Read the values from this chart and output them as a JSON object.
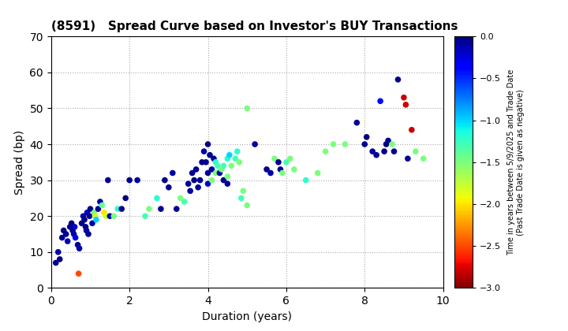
{
  "title": "(8591)   Spread Curve based on Investor's BUY Transactions",
  "xlabel": "Duration (years)",
  "ylabel": "Spread (bp)",
  "colorbar_label": "Time in years between 5/9/2025 and Trade Date\n(Past Trade Date is given as negative)",
  "xlim": [
    0,
    10
  ],
  "ylim": [
    0,
    70
  ],
  "xticks": [
    0,
    2,
    4,
    6,
    8,
    10
  ],
  "yticks": [
    0,
    10,
    20,
    30,
    40,
    50,
    60,
    70
  ],
  "clim": [
    -3.0,
    0.0
  ],
  "cticks": [
    0.0,
    -0.5,
    -1.0,
    -1.5,
    -2.0,
    -2.5,
    -3.0
  ],
  "points": [
    [
      0.12,
      7,
      -0.05
    ],
    [
      0.18,
      10,
      -0.1
    ],
    [
      0.22,
      8,
      0.0
    ],
    [
      0.28,
      14,
      -0.05
    ],
    [
      0.32,
      16,
      -0.02
    ],
    [
      0.38,
      15,
      -0.05
    ],
    [
      0.42,
      13,
      -0.15
    ],
    [
      0.48,
      17,
      -0.05
    ],
    [
      0.52,
      18,
      -0.0
    ],
    [
      0.55,
      16,
      -0.02
    ],
    [
      0.58,
      15,
      -0.1
    ],
    [
      0.6,
      17,
      -0.2
    ],
    [
      0.62,
      14,
      -0.3
    ],
    [
      0.68,
      12,
      -0.05
    ],
    [
      0.7,
      4,
      -2.5
    ],
    [
      0.72,
      11,
      -0.1
    ],
    [
      0.78,
      18,
      -0.05
    ],
    [
      0.82,
      20,
      -0.1
    ],
    [
      0.85,
      19,
      -0.0
    ],
    [
      0.88,
      17,
      -0.02
    ],
    [
      0.9,
      16,
      -0.1
    ],
    [
      0.92,
      21,
      -0.15
    ],
    [
      0.95,
      15,
      -0.05
    ],
    [
      0.98,
      20,
      -0.08
    ],
    [
      1.0,
      22,
      -0.05
    ],
    [
      1.05,
      18,
      -0.15
    ],
    [
      1.1,
      21,
      -1.5
    ],
    [
      1.12,
      20,
      -1.8
    ],
    [
      1.15,
      19,
      -1.0
    ],
    [
      1.2,
      22,
      -0.05
    ],
    [
      1.25,
      24,
      -0.1
    ],
    [
      1.3,
      23,
      -1.4
    ],
    [
      1.35,
      21,
      -2.0
    ],
    [
      1.4,
      20,
      -1.8
    ],
    [
      1.45,
      30,
      -0.05
    ],
    [
      1.5,
      20,
      -0.1
    ],
    [
      1.6,
      20,
      -1.5
    ],
    [
      1.7,
      22,
      -1.2
    ],
    [
      1.8,
      22,
      -0.05
    ],
    [
      1.9,
      25,
      -0.0
    ],
    [
      2.0,
      30,
      -0.05
    ],
    [
      2.2,
      30,
      -0.1
    ],
    [
      2.4,
      20,
      -1.3
    ],
    [
      2.5,
      22,
      -1.5
    ],
    [
      2.7,
      25,
      -1.2
    ],
    [
      2.8,
      22,
      -0.05
    ],
    [
      2.9,
      30,
      -0.0
    ],
    [
      3.0,
      28,
      -0.05
    ],
    [
      3.1,
      32,
      -0.1
    ],
    [
      3.2,
      22,
      -0.05
    ],
    [
      3.3,
      25,
      -1.5
    ],
    [
      3.4,
      24,
      -1.3
    ],
    [
      3.5,
      29,
      -0.05
    ],
    [
      3.55,
      27,
      -0.1
    ],
    [
      3.6,
      32,
      -0.05
    ],
    [
      3.65,
      30,
      -0.0
    ],
    [
      3.7,
      33,
      -0.05
    ],
    [
      3.75,
      28,
      -0.1
    ],
    [
      3.8,
      30,
      -0.05
    ],
    [
      3.85,
      35,
      -0.0
    ],
    [
      3.9,
      38,
      -0.1
    ],
    [
      3.95,
      35,
      -0.05
    ],
    [
      4.0,
      40,
      -0.0
    ],
    [
      4.0,
      32,
      -0.05
    ],
    [
      4.0,
      29,
      -0.2
    ],
    [
      4.05,
      37,
      -0.05
    ],
    [
      4.1,
      33,
      -0.1
    ],
    [
      4.1,
      30,
      -1.5
    ],
    [
      4.15,
      36,
      -0.05
    ],
    [
      4.2,
      35,
      -1.2
    ],
    [
      4.2,
      32,
      -1.5
    ],
    [
      4.25,
      34,
      -1.3
    ],
    [
      4.3,
      32,
      -0.1
    ],
    [
      4.35,
      33,
      -1.5
    ],
    [
      4.4,
      34,
      -1.3
    ],
    [
      4.4,
      30,
      -0.05
    ],
    [
      4.5,
      36,
      -1.2
    ],
    [
      4.5,
      31,
      -1.5
    ],
    [
      4.5,
      29,
      -0.05
    ],
    [
      4.55,
      37,
      -1.0
    ],
    [
      4.6,
      34,
      -1.5
    ],
    [
      4.7,
      36,
      -1.3
    ],
    [
      4.75,
      38,
      -1.2
    ],
    [
      4.8,
      35,
      -1.5
    ],
    [
      4.85,
      25,
      -1.3
    ],
    [
      4.9,
      27,
      -1.5
    ],
    [
      5.0,
      23,
      -1.5
    ],
    [
      5.0,
      50,
      -1.5
    ],
    [
      5.2,
      40,
      -0.1
    ],
    [
      5.5,
      33,
      -0.05
    ],
    [
      5.6,
      32,
      -0.1
    ],
    [
      5.7,
      36,
      -1.5
    ],
    [
      5.8,
      35,
      -0.05
    ],
    [
      5.85,
      33,
      -0.05
    ],
    [
      5.9,
      32,
      -1.5
    ],
    [
      6.0,
      35,
      -1.3
    ],
    [
      6.1,
      36,
      -1.5
    ],
    [
      6.2,
      33,
      -1.5
    ],
    [
      6.5,
      30,
      -1.2
    ],
    [
      6.8,
      32,
      -1.5
    ],
    [
      7.0,
      38,
      -1.5
    ],
    [
      7.2,
      40,
      -1.5
    ],
    [
      7.5,
      40,
      -1.5
    ],
    [
      7.8,
      46,
      -0.05
    ],
    [
      8.0,
      40,
      -0.05
    ],
    [
      8.05,
      42,
      -0.0
    ],
    [
      8.2,
      38,
      -0.1
    ],
    [
      8.3,
      37,
      -0.05
    ],
    [
      8.4,
      52,
      -0.4
    ],
    [
      8.5,
      38,
      -0.05
    ],
    [
      8.55,
      40,
      -0.0
    ],
    [
      8.6,
      41,
      -0.05
    ],
    [
      8.7,
      40,
      -1.5
    ],
    [
      8.75,
      38,
      -0.05
    ],
    [
      8.85,
      58,
      -0.05
    ],
    [
      9.0,
      53,
      -2.8
    ],
    [
      9.05,
      51,
      -2.8
    ],
    [
      9.1,
      36,
      -0.05
    ],
    [
      9.2,
      44,
      -2.8
    ],
    [
      9.3,
      38,
      -1.5
    ],
    [
      9.5,
      36,
      -1.5
    ]
  ]
}
